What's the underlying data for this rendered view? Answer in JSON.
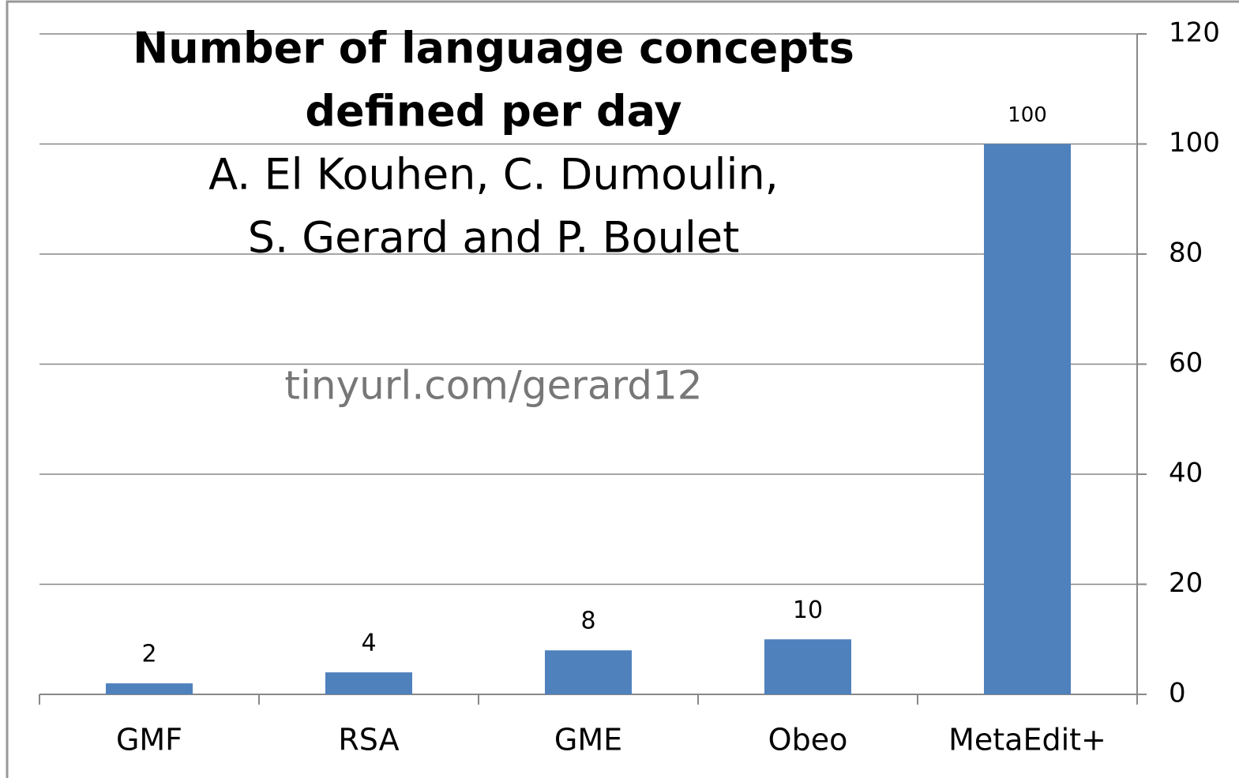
{
  "chart_data": {
    "type": "bar",
    "title": [
      "Number of language concepts",
      "defined per day"
    ],
    "subtitle": [
      "A. El Kouhen, C. Dumoulin,",
      "S. Gerard and P. Boulet"
    ],
    "annotation": "tinyurl.com/gerard12",
    "categories": [
      "GMF",
      "RSA",
      "GME",
      "Obeo",
      "MetaEdit+"
    ],
    "values": [
      2,
      4,
      8,
      10,
      100
    ],
    "color": "#4f81bd",
    "ylim": [
      0,
      120
    ],
    "yticks": [
      0,
      20,
      40,
      60,
      80,
      100,
      120
    ],
    "grid": true,
    "y_axis_side": "right"
  }
}
